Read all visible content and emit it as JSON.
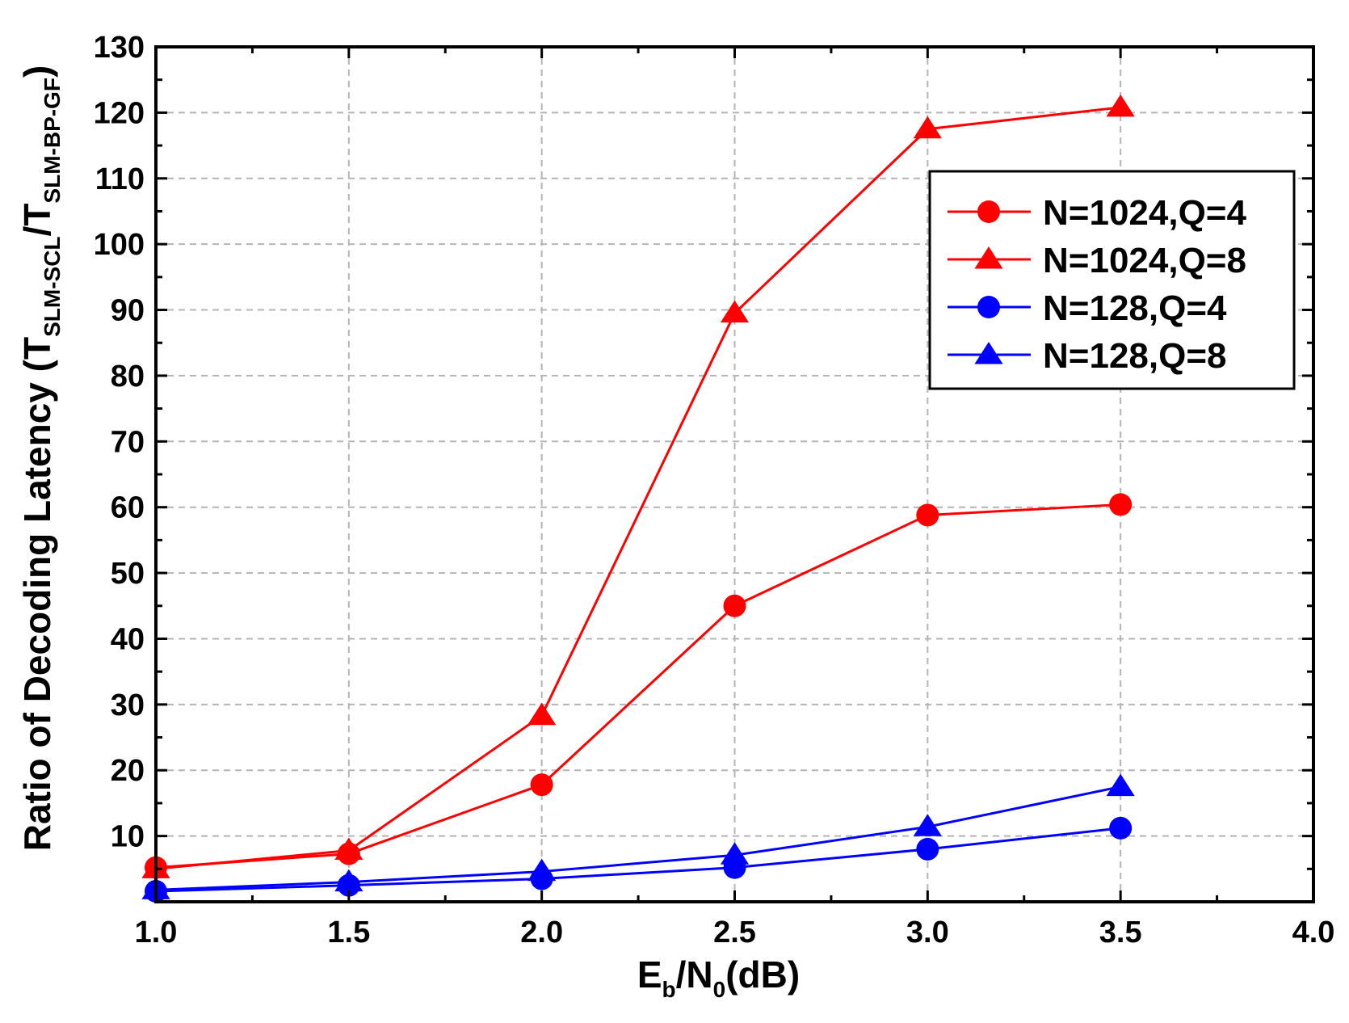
{
  "chart_data": {
    "type": "line",
    "title": "",
    "xlabel": {
      "main": "E",
      "sub": "b",
      "main2": "/N",
      "sub2": "0",
      "tail": "(dB)"
    },
    "ylabel": {
      "prefix": "Ratio of Decoding Latency (T",
      "sub1": "SLM-SCL",
      "mid": "/T",
      "sub2": "SLM-BP-GF",
      "suffix": ")"
    },
    "xlim": [
      1.0,
      4.0
    ],
    "ylim": [
      0,
      130
    ],
    "x_ticks": [
      1.0,
      1.5,
      2.0,
      2.5,
      3.0,
      3.5,
      4.0
    ],
    "x_tick_labels": [
      "1.0",
      "1.5",
      "2.0",
      "2.5",
      "3.0",
      "3.5",
      "4.0"
    ],
    "y_ticks": [
      10,
      20,
      30,
      40,
      50,
      60,
      70,
      80,
      90,
      100,
      110,
      120,
      130
    ],
    "y_tick_labels": [
      "10",
      "20",
      "30",
      "40",
      "50",
      "60",
      "70",
      "80",
      "90",
      "100",
      "110",
      "120",
      "130"
    ],
    "grid": true,
    "legend_position": "top-right",
    "x": [
      1.0,
      1.5,
      2.0,
      2.5,
      3.0,
      3.5
    ],
    "series": [
      {
        "name": "N=1024,Q=4",
        "color": "#ff0000",
        "marker": "circle",
        "values": [
          5.2,
          7.3,
          17.8,
          45.0,
          58.8,
          60.4
        ]
      },
      {
        "name": "N=1024,Q=8",
        "color": "#ff0000",
        "marker": "triangle",
        "values": [
          5.0,
          7.8,
          28.3,
          89.5,
          117.5,
          120.8
        ]
      },
      {
        "name": "N=128,Q=4",
        "color": "#0000ff",
        "marker": "circle",
        "values": [
          1.6,
          2.5,
          3.5,
          5.2,
          8.0,
          11.2
        ]
      },
      {
        "name": "N=128,Q=8",
        "color": "#0000ff",
        "marker": "triangle",
        "values": [
          1.8,
          3.0,
          4.6,
          7.1,
          11.4,
          17.5
        ]
      }
    ]
  }
}
